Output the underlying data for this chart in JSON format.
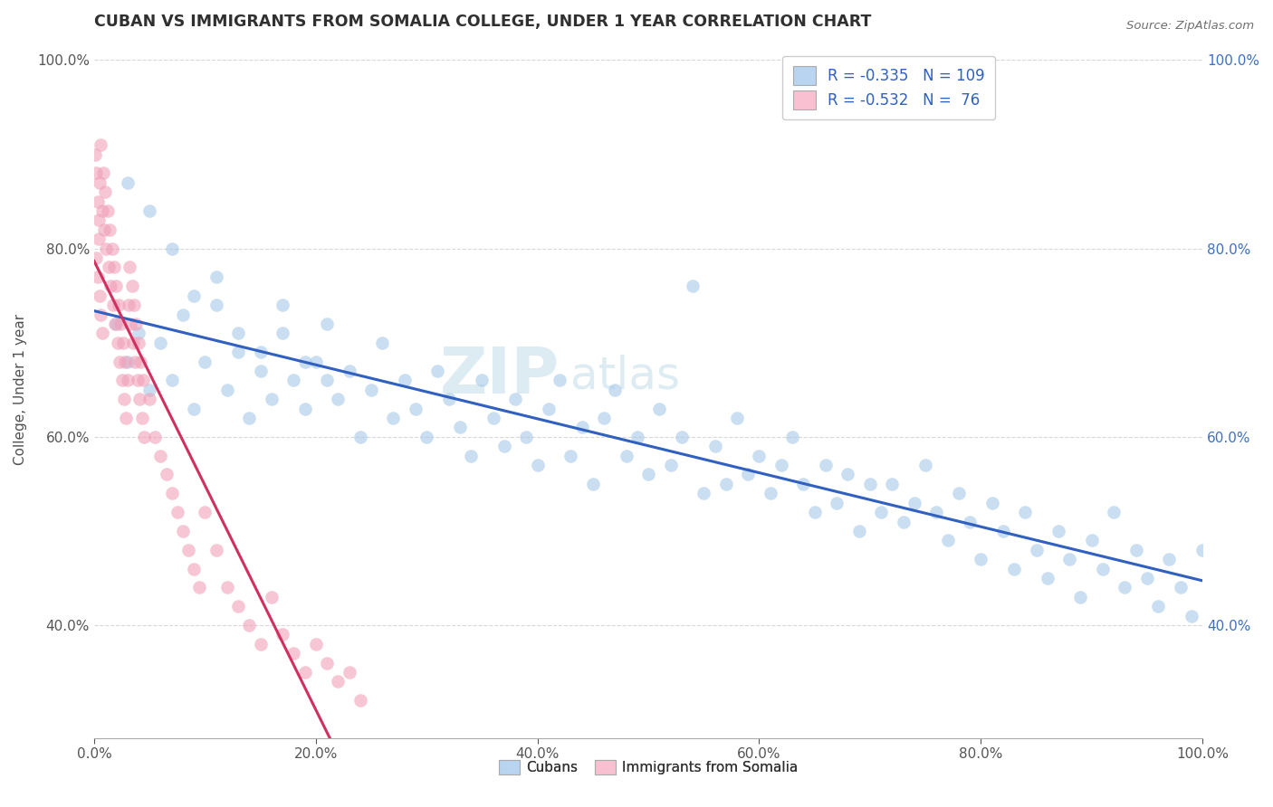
{
  "title": "CUBAN VS IMMIGRANTS FROM SOMALIA COLLEGE, UNDER 1 YEAR CORRELATION CHART",
  "source": "Source: ZipAtlas.com",
  "ylabel": "College, Under 1 year",
  "xlim": [
    0.0,
    1.0
  ],
  "ylim": [
    0.28,
    1.02
  ],
  "yticks": [
    0.4,
    0.6,
    0.8,
    1.0
  ],
  "xticks": [
    0.0,
    0.2,
    0.4,
    0.6,
    0.8,
    1.0
  ],
  "legend_labels_bottom": [
    "Cubans",
    "Immigrants from Somalia"
  ],
  "blue_color": "#a8c8e8",
  "pink_color": "#f0a0b8",
  "blue_line_color": "#3060c0",
  "pink_line_color": "#d03060",
  "blue_legend_color": "#b8d4f0",
  "pink_legend_color": "#f8c0d0",
  "watermark_zip": "ZIP",
  "watermark_atlas": "atlas",
  "background_color": "#ffffff",
  "grid_color": "#d8d8d8",
  "title_color": "#303030",
  "right_tick_color": "#4070c0",
  "cubans_x": [
    0.02,
    0.03,
    0.04,
    0.05,
    0.06,
    0.07,
    0.08,
    0.09,
    0.1,
    0.11,
    0.12,
    0.13,
    0.14,
    0.15,
    0.16,
    0.17,
    0.18,
    0.19,
    0.2,
    0.21,
    0.22,
    0.23,
    0.24,
    0.25,
    0.26,
    0.27,
    0.28,
    0.29,
    0.3,
    0.31,
    0.32,
    0.33,
    0.34,
    0.35,
    0.36,
    0.37,
    0.38,
    0.39,
    0.4,
    0.41,
    0.42,
    0.43,
    0.44,
    0.45,
    0.46,
    0.47,
    0.48,
    0.49,
    0.5,
    0.51,
    0.52,
    0.53,
    0.54,
    0.55,
    0.56,
    0.57,
    0.58,
    0.59,
    0.6,
    0.61,
    0.62,
    0.63,
    0.64,
    0.65,
    0.66,
    0.67,
    0.68,
    0.69,
    0.7,
    0.71,
    0.72,
    0.73,
    0.74,
    0.75,
    0.76,
    0.77,
    0.78,
    0.79,
    0.8,
    0.81,
    0.82,
    0.83,
    0.84,
    0.85,
    0.86,
    0.87,
    0.88,
    0.89,
    0.9,
    0.91,
    0.92,
    0.93,
    0.94,
    0.95,
    0.96,
    0.97,
    0.98,
    0.99,
    1.0,
    0.03,
    0.05,
    0.07,
    0.09,
    0.11,
    0.13,
    0.15,
    0.17,
    0.19,
    0.21
  ],
  "cubans_y": [
    0.72,
    0.68,
    0.71,
    0.65,
    0.7,
    0.66,
    0.73,
    0.63,
    0.68,
    0.74,
    0.65,
    0.69,
    0.62,
    0.67,
    0.64,
    0.71,
    0.66,
    0.63,
    0.68,
    0.72,
    0.64,
    0.67,
    0.6,
    0.65,
    0.7,
    0.62,
    0.66,
    0.63,
    0.6,
    0.67,
    0.64,
    0.61,
    0.58,
    0.66,
    0.62,
    0.59,
    0.64,
    0.6,
    0.57,
    0.63,
    0.66,
    0.58,
    0.61,
    0.55,
    0.62,
    0.65,
    0.58,
    0.6,
    0.56,
    0.63,
    0.57,
    0.6,
    0.76,
    0.54,
    0.59,
    0.55,
    0.62,
    0.56,
    0.58,
    0.54,
    0.57,
    0.6,
    0.55,
    0.52,
    0.57,
    0.53,
    0.56,
    0.5,
    0.55,
    0.52,
    0.55,
    0.51,
    0.53,
    0.57,
    0.52,
    0.49,
    0.54,
    0.51,
    0.47,
    0.53,
    0.5,
    0.46,
    0.52,
    0.48,
    0.45,
    0.5,
    0.47,
    0.43,
    0.49,
    0.46,
    0.52,
    0.44,
    0.48,
    0.45,
    0.42,
    0.47,
    0.44,
    0.41,
    0.48,
    0.87,
    0.84,
    0.8,
    0.75,
    0.77,
    0.71,
    0.69,
    0.74,
    0.68,
    0.66
  ],
  "somalia_x": [
    0.001,
    0.002,
    0.003,
    0.004,
    0.005,
    0.006,
    0.007,
    0.008,
    0.009,
    0.01,
    0.011,
    0.012,
    0.013,
    0.014,
    0.015,
    0.016,
    0.017,
    0.018,
    0.019,
    0.02,
    0.021,
    0.022,
    0.023,
    0.024,
    0.025,
    0.026,
    0.027,
    0.028,
    0.029,
    0.03,
    0.031,
    0.032,
    0.033,
    0.034,
    0.035,
    0.036,
    0.037,
    0.038,
    0.039,
    0.04,
    0.041,
    0.042,
    0.043,
    0.044,
    0.045,
    0.05,
    0.055,
    0.06,
    0.065,
    0.07,
    0.075,
    0.08,
    0.085,
    0.09,
    0.095,
    0.1,
    0.11,
    0.12,
    0.13,
    0.14,
    0.15,
    0.16,
    0.17,
    0.18,
    0.19,
    0.2,
    0.21,
    0.22,
    0.23,
    0.24,
    0.002,
    0.003,
    0.004,
    0.005,
    0.006,
    0.007
  ],
  "somalia_y": [
    0.9,
    0.88,
    0.85,
    0.83,
    0.87,
    0.91,
    0.84,
    0.88,
    0.82,
    0.86,
    0.8,
    0.84,
    0.78,
    0.82,
    0.76,
    0.8,
    0.74,
    0.78,
    0.72,
    0.76,
    0.7,
    0.74,
    0.68,
    0.72,
    0.66,
    0.7,
    0.64,
    0.68,
    0.62,
    0.66,
    0.74,
    0.78,
    0.72,
    0.76,
    0.7,
    0.74,
    0.68,
    0.72,
    0.66,
    0.7,
    0.64,
    0.68,
    0.62,
    0.66,
    0.6,
    0.64,
    0.6,
    0.58,
    0.56,
    0.54,
    0.52,
    0.5,
    0.48,
    0.46,
    0.44,
    0.52,
    0.48,
    0.44,
    0.42,
    0.4,
    0.38,
    0.43,
    0.39,
    0.37,
    0.35,
    0.38,
    0.36,
    0.34,
    0.35,
    0.32,
    0.79,
    0.77,
    0.81,
    0.75,
    0.73,
    0.71
  ]
}
